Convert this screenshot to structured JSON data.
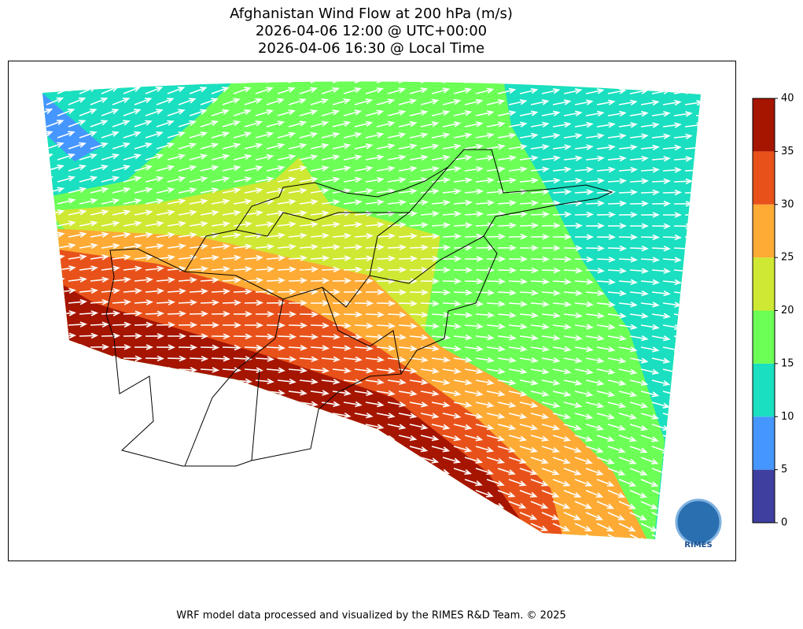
{
  "title": [
    "Afghanistan Wind Flow at 200 hPa (m/s)",
    "2026-04-06 12:00 @ UTC+00:00",
    "2026-04-06 16:30 @ Local Time"
  ],
  "colorbar": {
    "ticks": [
      0,
      5,
      10,
      15,
      20,
      25,
      30,
      35,
      40
    ],
    "colors": [
      "#3f3fa0",
      "#4696ff",
      "#1adfc0",
      "#6cff56",
      "#cfe833",
      "#fdab35",
      "#e8521a",
      "#a51500"
    ]
  },
  "logo": "RIMES",
  "footer": "WRF model data processed and visualized by the RIMES R&D Team. © 2025"
}
